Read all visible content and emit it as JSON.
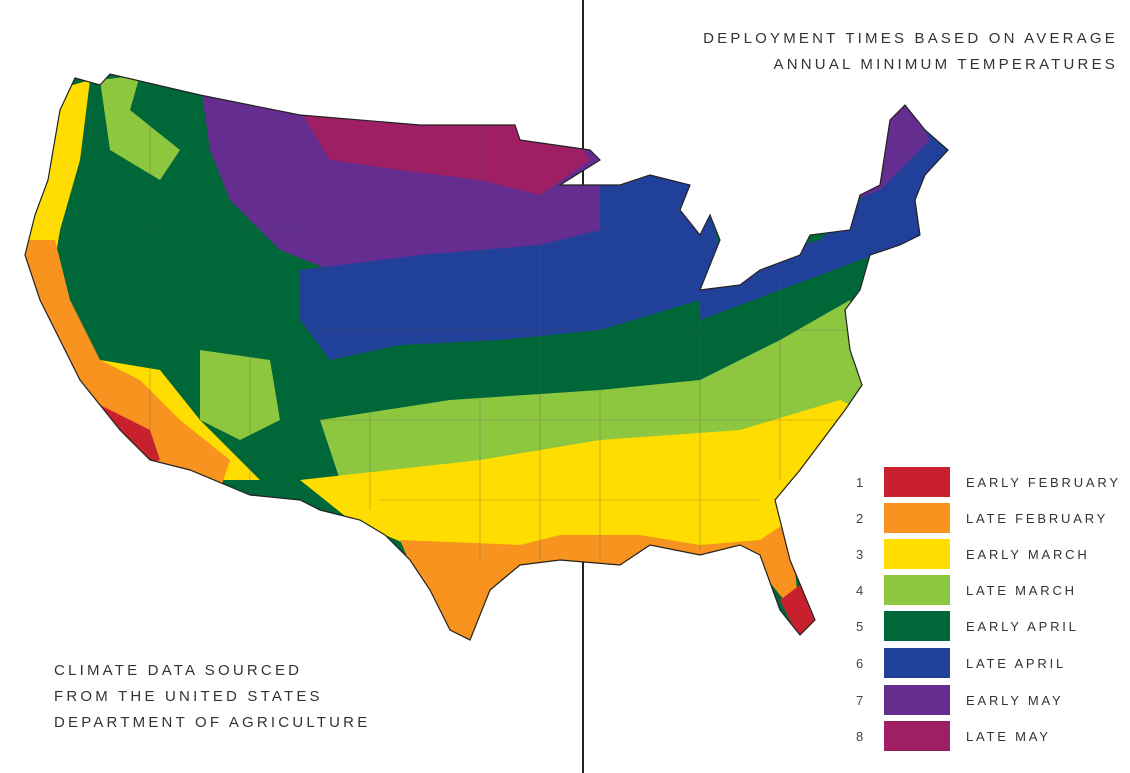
{
  "title": {
    "line1": "DEPLOYMENT TIMES BASED ON AVERAGE",
    "line2": "ANNUAL MINIMUM TEMPERATURES"
  },
  "source": {
    "line1": "CLIMATE DATA SOURCED",
    "line2": "FROM THE UNITED STATES",
    "line3": "DEPARTMENT OF AGRICULTURE"
  },
  "legend": [
    {
      "num": "1",
      "label": "EARLY FEBRUARY",
      "color": "#c8202c"
    },
    {
      "num": "2",
      "label": "LATE FEBRUARY",
      "color": "#f7931e"
    },
    {
      "num": "3",
      "label": "EARLY MARCH",
      "color": "#ffdd00"
    },
    {
      "num": "4",
      "label": "LATE MARCH",
      "color": "#8dc63f"
    },
    {
      "num": "5",
      "label": "EARLY APRIL",
      "color": "#006838"
    },
    {
      "num": "6",
      "label": "LATE APRIL",
      "color": "#21409a"
    },
    {
      "num": "7",
      "label": "EARLY MAY",
      "color": "#662d91"
    },
    {
      "num": "8",
      "label": "LATE MAY",
      "color": "#9e1f63"
    }
  ]
}
